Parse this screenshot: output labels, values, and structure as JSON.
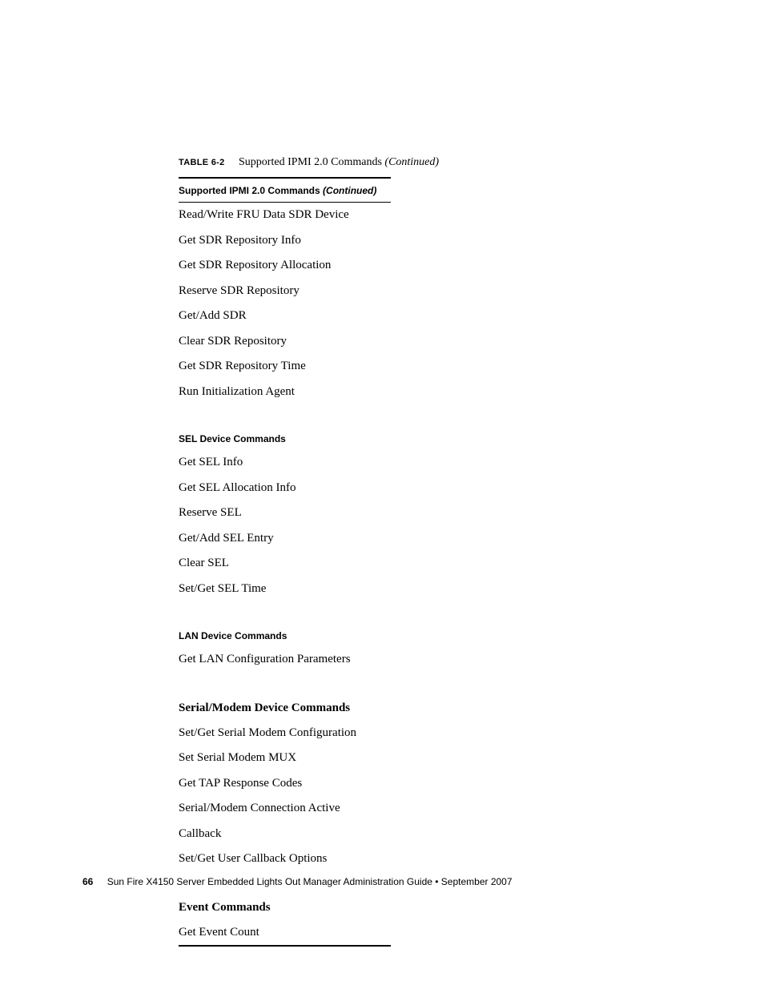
{
  "caption": {
    "label": "TABLE 6-2",
    "title": "Supported IPMI 2.0 Commands",
    "continued": "(Continued)"
  },
  "header": {
    "text": "Supported IPMI 2.0 Commands",
    "continued": "(Continued)"
  },
  "sections": [
    {
      "rows": [
        "Read/Write FRU Data SDR Device",
        "Get SDR Repository Info",
        "Get SDR Repository Allocation",
        "Reserve SDR Repository",
        "Get/Add SDR",
        "Clear SDR Repository",
        "Get SDR Repository Time",
        "Run Initialization Agent"
      ]
    },
    {
      "title": "SEL Device Commands",
      "title_style": "sans",
      "rows": [
        "Get SEL Info",
        "Get SEL Allocation Info",
        "Reserve SEL",
        "Get/Add SEL Entry",
        "Clear SEL",
        "Set/Get SEL Time"
      ]
    },
    {
      "title": "LAN Device Commands",
      "title_style": "sans",
      "rows": [
        "Get LAN Configuration Parameters"
      ]
    },
    {
      "title": "Serial/Modem Device Commands",
      "title_style": "serif",
      "rows": [
        "Set/Get Serial Modem Configuration",
        "Set Serial Modem MUX",
        "Get TAP Response Codes",
        "Serial/Modem Connection Active",
        "Callback",
        "Set/Get User Callback Options"
      ]
    },
    {
      "title": "Event Commands",
      "title_style": "serif",
      "rows": [
        "Get Event Count"
      ]
    }
  ],
  "footer": {
    "page": "66",
    "text": "Sun Fire X4150 Server Embedded Lights Out Manager Administration Guide • September 2007"
  }
}
